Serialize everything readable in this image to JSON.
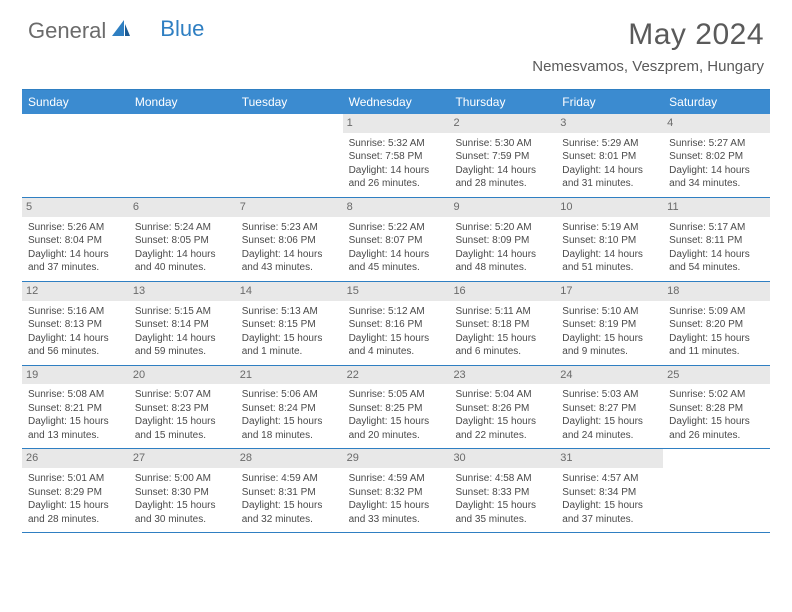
{
  "brand": {
    "part1": "General",
    "part2": "Blue"
  },
  "title": "May 2024",
  "location": "Nemesvamos, Veszprem, Hungary",
  "colors": {
    "header_bg": "#3b8bd0",
    "header_border": "#2f7fc2",
    "daynum_bg": "#e8e8e8",
    "text": "#4a4a4a",
    "title_color": "#5a5a5a"
  },
  "day_names": [
    "Sunday",
    "Monday",
    "Tuesday",
    "Wednesday",
    "Thursday",
    "Friday",
    "Saturday"
  ],
  "weeks": [
    [
      {
        "num": "",
        "lines": []
      },
      {
        "num": "",
        "lines": []
      },
      {
        "num": "",
        "lines": []
      },
      {
        "num": "1",
        "lines": [
          "Sunrise: 5:32 AM",
          "Sunset: 7:58 PM",
          "Daylight: 14 hours and 26 minutes."
        ]
      },
      {
        "num": "2",
        "lines": [
          "Sunrise: 5:30 AM",
          "Sunset: 7:59 PM",
          "Daylight: 14 hours and 28 minutes."
        ]
      },
      {
        "num": "3",
        "lines": [
          "Sunrise: 5:29 AM",
          "Sunset: 8:01 PM",
          "Daylight: 14 hours and 31 minutes."
        ]
      },
      {
        "num": "4",
        "lines": [
          "Sunrise: 5:27 AM",
          "Sunset: 8:02 PM",
          "Daylight: 14 hours and 34 minutes."
        ]
      }
    ],
    [
      {
        "num": "5",
        "lines": [
          "Sunrise: 5:26 AM",
          "Sunset: 8:04 PM",
          "Daylight: 14 hours and 37 minutes."
        ]
      },
      {
        "num": "6",
        "lines": [
          "Sunrise: 5:24 AM",
          "Sunset: 8:05 PM",
          "Daylight: 14 hours and 40 minutes."
        ]
      },
      {
        "num": "7",
        "lines": [
          "Sunrise: 5:23 AM",
          "Sunset: 8:06 PM",
          "Daylight: 14 hours and 43 minutes."
        ]
      },
      {
        "num": "8",
        "lines": [
          "Sunrise: 5:22 AM",
          "Sunset: 8:07 PM",
          "Daylight: 14 hours and 45 minutes."
        ]
      },
      {
        "num": "9",
        "lines": [
          "Sunrise: 5:20 AM",
          "Sunset: 8:09 PM",
          "Daylight: 14 hours and 48 minutes."
        ]
      },
      {
        "num": "10",
        "lines": [
          "Sunrise: 5:19 AM",
          "Sunset: 8:10 PM",
          "Daylight: 14 hours and 51 minutes."
        ]
      },
      {
        "num": "11",
        "lines": [
          "Sunrise: 5:17 AM",
          "Sunset: 8:11 PM",
          "Daylight: 14 hours and 54 minutes."
        ]
      }
    ],
    [
      {
        "num": "12",
        "lines": [
          "Sunrise: 5:16 AM",
          "Sunset: 8:13 PM",
          "Daylight: 14 hours and 56 minutes."
        ]
      },
      {
        "num": "13",
        "lines": [
          "Sunrise: 5:15 AM",
          "Sunset: 8:14 PM",
          "Daylight: 14 hours and 59 minutes."
        ]
      },
      {
        "num": "14",
        "lines": [
          "Sunrise: 5:13 AM",
          "Sunset: 8:15 PM",
          "Daylight: 15 hours and 1 minute."
        ]
      },
      {
        "num": "15",
        "lines": [
          "Sunrise: 5:12 AM",
          "Sunset: 8:16 PM",
          "Daylight: 15 hours and 4 minutes."
        ]
      },
      {
        "num": "16",
        "lines": [
          "Sunrise: 5:11 AM",
          "Sunset: 8:18 PM",
          "Daylight: 15 hours and 6 minutes."
        ]
      },
      {
        "num": "17",
        "lines": [
          "Sunrise: 5:10 AM",
          "Sunset: 8:19 PM",
          "Daylight: 15 hours and 9 minutes."
        ]
      },
      {
        "num": "18",
        "lines": [
          "Sunrise: 5:09 AM",
          "Sunset: 8:20 PM",
          "Daylight: 15 hours and 11 minutes."
        ]
      }
    ],
    [
      {
        "num": "19",
        "lines": [
          "Sunrise: 5:08 AM",
          "Sunset: 8:21 PM",
          "Daylight: 15 hours and 13 minutes."
        ]
      },
      {
        "num": "20",
        "lines": [
          "Sunrise: 5:07 AM",
          "Sunset: 8:23 PM",
          "Daylight: 15 hours and 15 minutes."
        ]
      },
      {
        "num": "21",
        "lines": [
          "Sunrise: 5:06 AM",
          "Sunset: 8:24 PM",
          "Daylight: 15 hours and 18 minutes."
        ]
      },
      {
        "num": "22",
        "lines": [
          "Sunrise: 5:05 AM",
          "Sunset: 8:25 PM",
          "Daylight: 15 hours and 20 minutes."
        ]
      },
      {
        "num": "23",
        "lines": [
          "Sunrise: 5:04 AM",
          "Sunset: 8:26 PM",
          "Daylight: 15 hours and 22 minutes."
        ]
      },
      {
        "num": "24",
        "lines": [
          "Sunrise: 5:03 AM",
          "Sunset: 8:27 PM",
          "Daylight: 15 hours and 24 minutes."
        ]
      },
      {
        "num": "25",
        "lines": [
          "Sunrise: 5:02 AM",
          "Sunset: 8:28 PM",
          "Daylight: 15 hours and 26 minutes."
        ]
      }
    ],
    [
      {
        "num": "26",
        "lines": [
          "Sunrise: 5:01 AM",
          "Sunset: 8:29 PM",
          "Daylight: 15 hours and 28 minutes."
        ]
      },
      {
        "num": "27",
        "lines": [
          "Sunrise: 5:00 AM",
          "Sunset: 8:30 PM",
          "Daylight: 15 hours and 30 minutes."
        ]
      },
      {
        "num": "28",
        "lines": [
          "Sunrise: 4:59 AM",
          "Sunset: 8:31 PM",
          "Daylight: 15 hours and 32 minutes."
        ]
      },
      {
        "num": "29",
        "lines": [
          "Sunrise: 4:59 AM",
          "Sunset: 8:32 PM",
          "Daylight: 15 hours and 33 minutes."
        ]
      },
      {
        "num": "30",
        "lines": [
          "Sunrise: 4:58 AM",
          "Sunset: 8:33 PM",
          "Daylight: 15 hours and 35 minutes."
        ]
      },
      {
        "num": "31",
        "lines": [
          "Sunrise: 4:57 AM",
          "Sunset: 8:34 PM",
          "Daylight: 15 hours and 37 minutes."
        ]
      },
      {
        "num": "",
        "lines": []
      }
    ]
  ]
}
